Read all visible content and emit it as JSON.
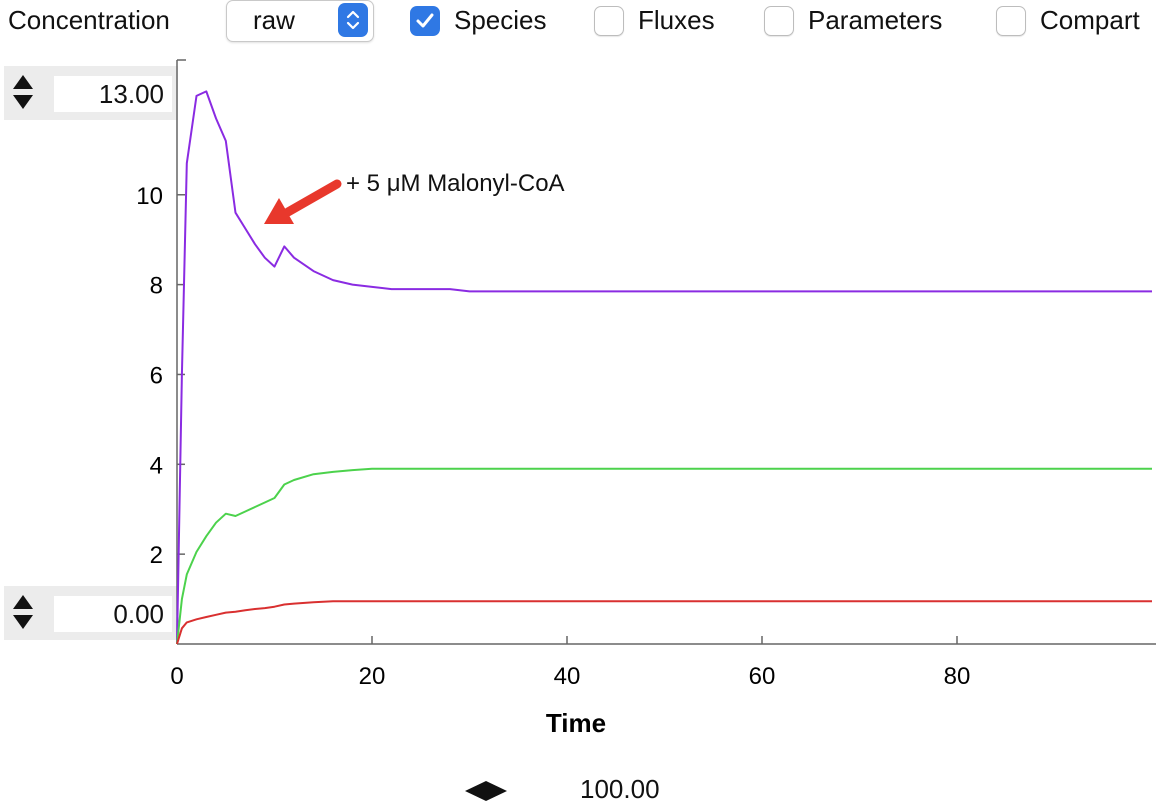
{
  "toolbar": {
    "concentration_label": "Concentration",
    "mode_select_value": "raw",
    "checkboxes": [
      {
        "label": "Species",
        "checked": true
      },
      {
        "label": "Fluxes",
        "checked": false
      },
      {
        "label": "Parameters",
        "checked": false
      },
      {
        "label": "Compart",
        "checked": false
      }
    ]
  },
  "y_max_spinner": {
    "value": "13.00"
  },
  "y_min_spinner": {
    "value": "0.00"
  },
  "x_max_value": "100.00",
  "colors": {
    "accent": "#2f78e4",
    "purple": "#8a2be2",
    "green": "#4cd24c",
    "red": "#d93030",
    "arrow": "#e8382c"
  },
  "chart_data": {
    "type": "line",
    "xlabel": "Time",
    "ylabel": "",
    "xlim": [
      0,
      100
    ],
    "ylim": [
      0,
      13
    ],
    "x_ticks": [
      0,
      20,
      40,
      60,
      80
    ],
    "y_ticks": [
      2,
      4,
      6,
      8,
      10
    ],
    "grid": false,
    "annotation": {
      "text": "+ 5 μM Malonyl-CoA",
      "at": [
        9,
        9.4
      ]
    },
    "series": [
      {
        "color": "#8a2be2",
        "x": [
          0,
          0.5,
          1,
          2,
          3,
          4,
          5,
          6,
          7,
          8,
          9,
          10,
          11,
          12,
          14,
          16,
          18,
          20,
          22,
          25,
          28,
          30,
          40,
          60,
          80,
          100
        ],
        "y": [
          0,
          6,
          10.7,
          12.2,
          12.3,
          11.7,
          11.2,
          9.6,
          9.25,
          8.9,
          8.6,
          8.4,
          8.85,
          8.6,
          8.3,
          8.1,
          8.0,
          7.95,
          7.9,
          7.9,
          7.9,
          7.85,
          7.85,
          7.85,
          7.85,
          7.85
        ]
      },
      {
        "color": "#4cd24c",
        "x": [
          0,
          0.5,
          1,
          2,
          3,
          4,
          5,
          6,
          7,
          8,
          9,
          10,
          11,
          12,
          14,
          16,
          18,
          20,
          22,
          25,
          30,
          40,
          60,
          80,
          100
        ],
        "y": [
          0,
          1.0,
          1.55,
          2.05,
          2.4,
          2.7,
          2.9,
          2.85,
          2.95,
          3.05,
          3.15,
          3.25,
          3.55,
          3.65,
          3.78,
          3.83,
          3.87,
          3.9,
          3.9,
          3.9,
          3.9,
          3.9,
          3.9,
          3.9,
          3.9
        ]
      },
      {
        "color": "#d93030",
        "x": [
          0,
          0.5,
          1,
          2,
          3,
          4,
          5,
          6,
          7,
          8,
          9,
          10,
          11,
          12,
          14,
          16,
          18,
          20,
          30,
          40,
          60,
          80,
          100
        ],
        "y": [
          0,
          0.35,
          0.48,
          0.55,
          0.6,
          0.65,
          0.7,
          0.72,
          0.75,
          0.78,
          0.8,
          0.83,
          0.88,
          0.9,
          0.93,
          0.95,
          0.95,
          0.95,
          0.95,
          0.95,
          0.95,
          0.95,
          0.95
        ]
      }
    ]
  }
}
